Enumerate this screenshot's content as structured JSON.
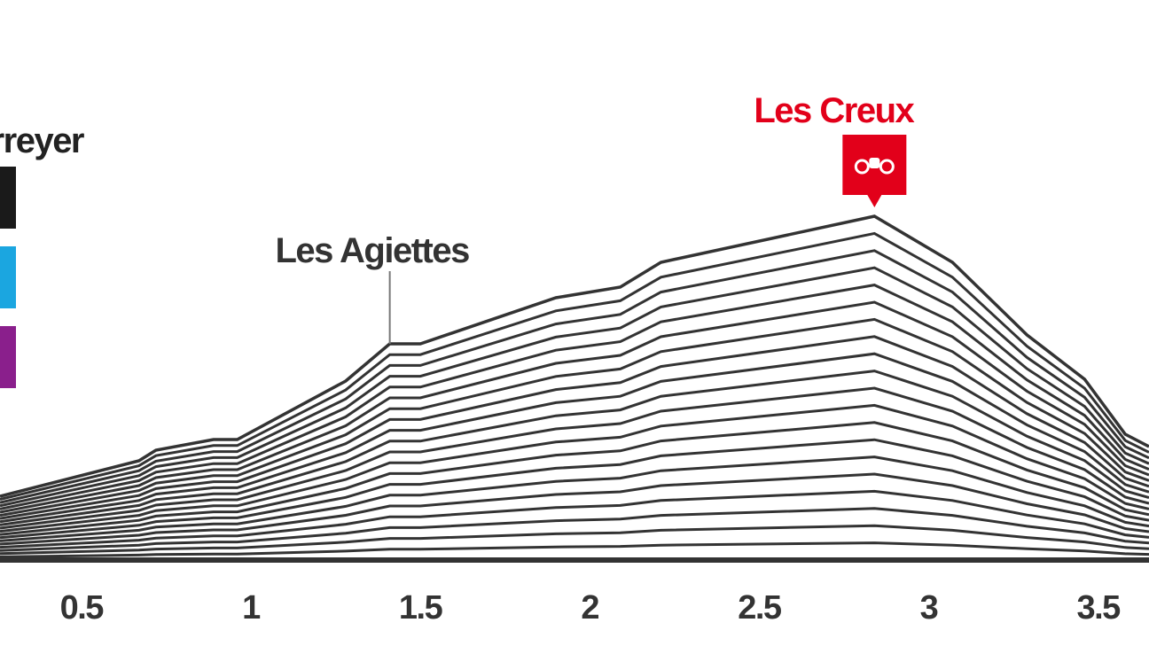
{
  "chart_data": {
    "type": "line",
    "legend_label": "rreyer",
    "x": [
      0.26,
      0.67,
      0.72,
      0.89,
      0.96,
      1.28,
      1.41,
      1.5,
      1.9,
      2.09,
      2.21,
      2.84,
      3.07,
      3.29,
      3.46,
      3.58,
      3.65
    ],
    "series": [
      {
        "color": "#333333",
        "values": [
          18,
          28,
          31,
          34,
          34,
          50.5,
          61,
          61,
          74,
          77,
          84,
          97,
          84,
          63.5,
          51,
          35.5,
          32
        ]
      }
    ],
    "xlim": [
      0.26,
      3.65
    ],
    "ylim": [
      0,
      100
    ],
    "xticks": [
      0.5,
      1,
      1.5,
      2,
      2.5,
      3,
      3.5
    ],
    "annotations": [
      {
        "text": "Les Agiettes",
        "x": 1.41,
        "y": 61,
        "color": "#333333"
      },
      {
        "text": "Les Creux",
        "x": 2.84,
        "y": 97,
        "color": "#e2001a"
      }
    ],
    "legend_colors": [
      "#1a1a1a",
      "#1ba6e0",
      "#8a1f8c"
    ]
  }
}
